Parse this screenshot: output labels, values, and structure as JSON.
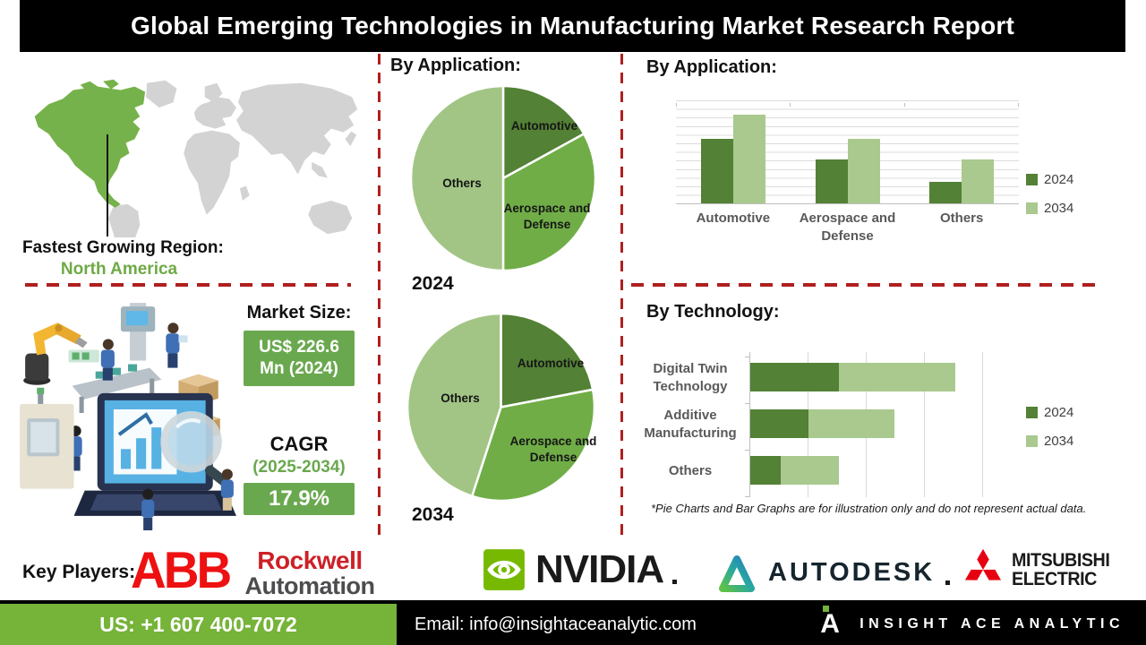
{
  "theme": {
    "series_2024": "#538135",
    "series_2034": "#a9c98e",
    "pie_automotive": "#538135",
    "pie_aerospace": "#70ad47",
    "pie_others": "#a2c585",
    "dash_red": "#b01f1f",
    "green_box": "#6aa84f",
    "footer_green": "#76b339",
    "map_green": "#76b24b",
    "map_gray": "#d3d3d3",
    "na_text_green": "#6faa46"
  },
  "header": {
    "title": "Global Emerging Technologies in Manufacturing Market Research Report"
  },
  "region": {
    "label": "Fastest Growing Region:",
    "value": "North America"
  },
  "market": {
    "size_label": "Market Size:",
    "size_line1": "US$ 226.6",
    "size_line2": "Mn (2024)",
    "cagr_label": "CAGR",
    "cagr_period": "(2025-2034)",
    "cagr_value": "17.9%"
  },
  "chart_data": [
    {
      "id": "pie_2024",
      "type": "pie",
      "title": "By Application:",
      "year_label": "2024",
      "labels": [
        "Automotive",
        "Aerospace and Defense",
        "Others"
      ],
      "values": [
        17,
        33,
        50
      ],
      "note": "illustrative share, percent"
    },
    {
      "id": "pie_2034",
      "type": "pie",
      "year_label": "2034",
      "labels": [
        "Automotive",
        "Aerospace and Defense",
        "Others"
      ],
      "values": [
        22,
        33,
        45
      ],
      "note": "illustrative share, percent"
    },
    {
      "id": "application_bars",
      "type": "bar",
      "title": "By Application:",
      "categories": [
        "Automotive",
        "Aerospace and Defense",
        "Others"
      ],
      "series": [
        {
          "name": "2024",
          "values": [
            63,
            43,
            21
          ]
        },
        {
          "name": "2034",
          "values": [
            86,
            63,
            43
          ]
        }
      ],
      "ylim": [
        0,
        100
      ],
      "grid": true,
      "legend_position": "right"
    },
    {
      "id": "technology_bars",
      "type": "bar",
      "orientation": "horizontal-stacked",
      "title": "By Technology:",
      "categories": [
        "Digital Twin Technology",
        "Additive Manufacturing",
        "Others"
      ],
      "series": [
        {
          "name": "2024",
          "values": [
            38,
            25,
            13
          ]
        },
        {
          "name": "2034",
          "values": [
            50,
            37,
            25
          ]
        }
      ],
      "xlim": [
        0,
        100
      ],
      "grid": true,
      "legend_position": "right"
    }
  ],
  "disclaimer": "*Pie Charts and Bar Graphs are for illustration only and do not represent actual data.",
  "key_players": {
    "label": "Key Players:",
    "companies": [
      "ABB",
      "Rockwell Automation",
      "NVIDIA",
      "AUTODESK",
      "MITSUBISHI ELECTRIC"
    ]
  },
  "logos": {
    "abb": "ABB",
    "rockwell_line1": "Rockwell",
    "rockwell_line2": "Automation",
    "nvidia": "NVIDIA",
    "autodesk": "AUTODESK",
    "mitsubishi_line1": "MITSUBISHI",
    "mitsubishi_line2": "ELECTRIC"
  },
  "footer": {
    "phone": "US: +1 607 400-7072",
    "email": "Email: info@insightaceanalytic.com",
    "brand_mark": "A",
    "brand": "INSIGHT ACE ANALYTIC"
  }
}
